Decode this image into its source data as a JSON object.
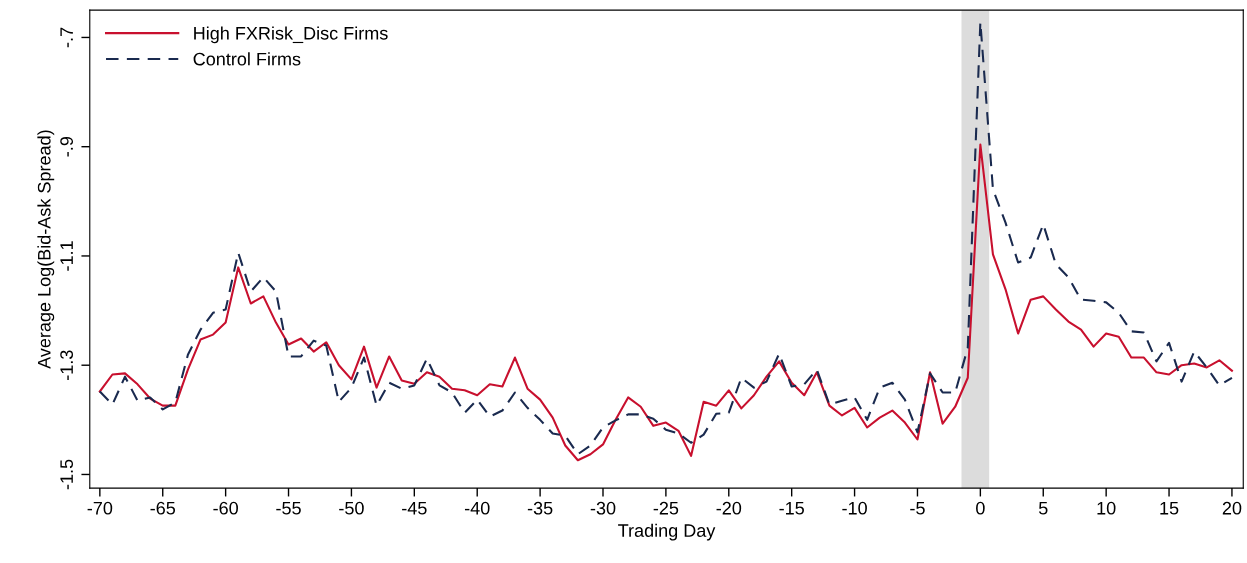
{
  "chart_data": {
    "type": "line",
    "xlabel": "Trading Day",
    "ylabel": "Average Log(Bid-Ask Spread)",
    "x": [
      -70,
      -69,
      -68,
      -67,
      -66,
      -65,
      -64,
      -63,
      -62,
      -61,
      -60,
      -59,
      -58,
      -57,
      -56,
      -55,
      -54,
      -53,
      -52,
      -51,
      -50,
      -49,
      -48,
      -47,
      -46,
      -45,
      -44,
      -43,
      -42,
      -41,
      -40,
      -39,
      -38,
      -37,
      -36,
      -35,
      -34,
      -33,
      -32,
      -31,
      -30,
      -29,
      -28,
      -27,
      -26,
      -25,
      -24,
      -23,
      -22,
      -21,
      -20,
      -19,
      -18,
      -17,
      -16,
      -15,
      -14,
      -13,
      -12,
      -11,
      -10,
      -9,
      -8,
      -7,
      -6,
      -5,
      -4,
      -3,
      -2,
      -1,
      0,
      1,
      2,
      3,
      4,
      5,
      6,
      7,
      8,
      9,
      10,
      11,
      12,
      13,
      14,
      15,
      16,
      17,
      18,
      19,
      20
    ],
    "series": [
      {
        "name": "High FXRisk_Disc Firms",
        "color": "#c8102e",
        "line_style": "solid",
        "values": [
          -1.348,
          -1.317,
          -1.315,
          -1.335,
          -1.361,
          -1.374,
          -1.374,
          -1.308,
          -1.253,
          -1.244,
          -1.222,
          -1.121,
          -1.187,
          -1.174,
          -1.222,
          -1.262,
          -1.251,
          -1.275,
          -1.258,
          -1.3,
          -1.326,
          -1.266,
          -1.341,
          -1.284,
          -1.328,
          -1.334,
          -1.313,
          -1.321,
          -1.343,
          -1.346,
          -1.355,
          -1.335,
          -1.339,
          -1.286,
          -1.343,
          -1.363,
          -1.396,
          -1.447,
          -1.474,
          -1.463,
          -1.445,
          -1.4,
          -1.359,
          -1.376,
          -1.411,
          -1.405,
          -1.42,
          -1.466,
          -1.367,
          -1.374,
          -1.346,
          -1.379,
          -1.355,
          -1.321,
          -1.293,
          -1.332,
          -1.355,
          -1.313,
          -1.374,
          -1.392,
          -1.378,
          -1.414,
          -1.396,
          -1.383,
          -1.405,
          -1.436,
          -1.313,
          -1.407,
          -1.376,
          -1.323,
          -0.896,
          -1.097,
          -1.161,
          -1.242,
          -1.18,
          -1.174,
          -1.198,
          -1.22,
          -1.235,
          -1.266,
          -1.242,
          -1.248,
          -1.286,
          -1.286,
          -1.313,
          -1.317,
          -1.3,
          -1.297,
          -1.304,
          -1.291,
          -1.31
        ]
      },
      {
        "name": "Control Firms",
        "color": "#1a2a4f",
        "line_style": "dashed",
        "values": [
          -1.348,
          -1.372,
          -1.321,
          -1.365,
          -1.359,
          -1.381,
          -1.368,
          -1.281,
          -1.235,
          -1.204,
          -1.198,
          -1.094,
          -1.165,
          -1.139,
          -1.165,
          -1.284,
          -1.284,
          -1.255,
          -1.264,
          -1.367,
          -1.341,
          -1.286,
          -1.374,
          -1.332,
          -1.343,
          -1.337,
          -1.288,
          -1.337,
          -1.35,
          -1.387,
          -1.363,
          -1.394,
          -1.383,
          -1.35,
          -1.378,
          -1.4,
          -1.425,
          -1.429,
          -1.463,
          -1.447,
          -1.414,
          -1.401,
          -1.39,
          -1.39,
          -1.398,
          -1.418,
          -1.425,
          -1.442,
          -1.427,
          -1.389,
          -1.387,
          -1.323,
          -1.341,
          -1.33,
          -1.279,
          -1.339,
          -1.335,
          -1.308,
          -1.372,
          -1.365,
          -1.359,
          -1.4,
          -1.341,
          -1.332,
          -1.363,
          -1.423,
          -1.315,
          -1.35,
          -1.35,
          -1.268,
          -0.672,
          -0.978,
          -1.039,
          -1.112,
          -1.103,
          -1.042,
          -1.115,
          -1.139,
          -1.18,
          -1.182,
          -1.185,
          -1.204,
          -1.238,
          -1.24,
          -1.293,
          -1.259,
          -1.33,
          -1.275,
          -1.304,
          -1.337,
          -1.323
        ]
      }
    ],
    "xlim": [
      -70.8,
      20.9
    ],
    "ylim": [
      -1.525,
      -0.65
    ],
    "xticks": [
      -70,
      -65,
      -60,
      -55,
      -50,
      -45,
      -40,
      -35,
      -30,
      -25,
      -20,
      -15,
      -10,
      -5,
      0,
      5,
      10,
      15,
      20
    ],
    "yticks": [
      {
        "value": -1.5,
        "label": "-1.5"
      },
      {
        "value": -1.3,
        "label": "-1.3"
      },
      {
        "value": -1.1,
        "label": "-1.1"
      },
      {
        "value": -0.9,
        "label": "-.9"
      },
      {
        "value": -0.7,
        "label": "-.7"
      }
    ],
    "bands": [
      {
        "axis": "x",
        "from": -1.5,
        "to": 0.7,
        "color": "#dcdcdc"
      }
    ],
    "grid": false,
    "legend": "top left",
    "marker": "none"
  }
}
